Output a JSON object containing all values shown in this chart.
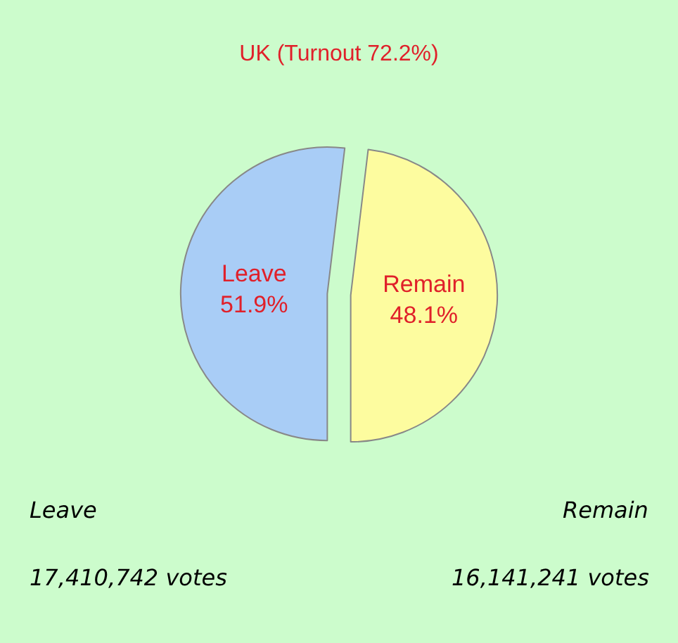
{
  "chart_data": {
    "type": "pie",
    "title": "UK (Turnout 72.2%)",
    "categories": [
      "Leave",
      "Remain"
    ],
    "values": [
      51.9,
      48.1
    ],
    "value_labels": [
      "51.9%",
      "48.1%"
    ],
    "colors": [
      "#a9cdf6",
      "#fdfc9f"
    ],
    "annotations": [
      "Leave",
      "17,410,742 votes",
      "Remain",
      "16,141,241 votes"
    ],
    "legend": false
  }
}
